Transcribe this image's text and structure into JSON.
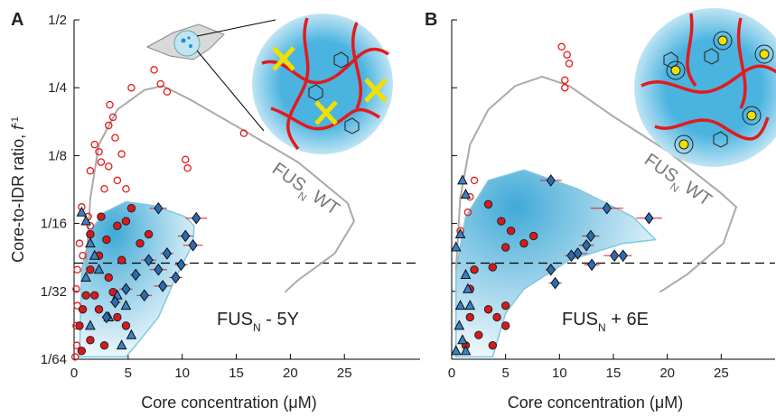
{
  "chart_data": [
    {
      "type": "scatter",
      "panel_label": "A",
      "yscale": "log2",
      "xlabel": "Core concentration (μM)",
      "ylabel": {
        "text": "Core-to-IDR ratio, ",
        "var": "f",
        "sup": "-1"
      },
      "xlim": [
        0,
        32
      ],
      "ylim": [
        0.015625,
        0.5
      ],
      "xticks": [
        0,
        5,
        10,
        15,
        20,
        25
      ],
      "yticks": [
        {
          "value": 0.5,
          "label": "1/2"
        },
        {
          "value": 0.25,
          "label": "1/4"
        },
        {
          "value": 0.125,
          "label": "1/8"
        },
        {
          "value": 0.0625,
          "label": "1/16"
        },
        {
          "value": 0.03125,
          "label": "1/32"
        },
        {
          "value": 0.015625,
          "label": "1/64"
        }
      ],
      "ytick_labels": true,
      "hline": 0.0417,
      "annotations": [
        {
          "text": "FUS",
          "sub": "N",
          "rest": " WT"
        },
        {
          "text": "FUS",
          "sub": "N",
          "rest": " - 5Y"
        }
      ],
      "series": [
        {
          "kind": "area",
          "color": "#7ec8e3",
          "x": [
            0.5,
            0.7,
            1.5,
            2.8,
            4.8,
            7.4,
            10.3,
            11.1,
            11.0,
            9.4,
            7.8,
            5.7,
            4.8
          ],
          "values": [
            0.016,
            0.039,
            0.058,
            0.07,
            0.078,
            0.075,
            0.067,
            0.061,
            0.051,
            0.036,
            0.024,
            0.018,
            0.016
          ]
        },
        {
          "kind": "line",
          "color": "#aaaaaa",
          "x": [
            1.1,
            1.5,
            2.3,
            4.0,
            6.5,
            8.2,
            10.7,
            14.9,
            20.7,
            25.3,
            25.9,
            24.1,
            20.7,
            19.5
          ],
          "values": [
            0.039,
            0.081,
            0.14,
            0.2,
            0.244,
            0.255,
            0.222,
            0.17,
            0.117,
            0.077,
            0.064,
            0.046,
            0.035,
            0.031
          ]
        },
        {
          "kind": "scatter",
          "marker": "open-circle",
          "color": "#e31a1c",
          "x": [
            7.4,
            8.0,
            8.6,
            5.3,
            3.3,
            3.6,
            3.2,
            3.8,
            1.9,
            2.3,
            2.5,
            1.5,
            3.2,
            4.0,
            10.3,
            10.5,
            15.7,
            0.7,
            1.3,
            1.5,
            0.5,
            0.3,
            0.2,
            0.3,
            0.2,
            0.25,
            0.1,
            0.8,
            4.4,
            4.8,
            2.8
          ],
          "values": [
            0.3,
            0.26,
            0.24,
            0.25,
            0.21,
            0.185,
            0.17,
            0.15,
            0.14,
            0.13,
            0.117,
            0.107,
            0.112,
            0.097,
            0.12,
            0.11,
            0.157,
            0.074,
            0.067,
            0.061,
            0.051,
            0.039,
            0.032,
            0.027,
            0.022,
            0.018,
            0.016,
            0.045,
            0.127,
            0.089,
            0.089
          ]
        },
        {
          "kind": "scatter",
          "marker": "circle",
          "color": "#d7191c",
          "x": [
            5.3,
            4.0,
            3.0,
            4.8,
            2.3,
            1.5,
            3.2,
            1.1,
            2.3,
            4.0,
            0.5,
            1.5,
            0.7,
            2.8,
            4.8,
            6.1,
            6.9,
            4.4,
            3.6,
            1.9,
            0.8,
            2.5,
            1.5
          ],
          "values": [
            0.073,
            0.061,
            0.053,
            0.064,
            0.045,
            0.039,
            0.036,
            0.03,
            0.026,
            0.024,
            0.022,
            0.019,
            0.017,
            0.018,
            0.022,
            0.051,
            0.056,
            0.043,
            0.031,
            0.03,
            0.026,
            0.067,
            0.056
          ]
        },
        {
          "kind": "scatter",
          "marker": "triangle",
          "color": "#3b82c4",
          "x": [
            0.7,
            1.1,
            1.5,
            1.9,
            2.3,
            4.0,
            4.4,
            5.3,
            1.1,
            1.5,
            3.2,
            4.8
          ],
          "values": [
            0.07,
            0.064,
            0.051,
            0.045,
            0.039,
            0.03,
            0.018,
            0.02,
            0.036,
            0.022,
            0.024,
            0.027
          ]
        },
        {
          "kind": "scatter",
          "marker": "diamond",
          "color": "#2b6cb0",
          "err_color": "#e31a1c",
          "x": [
            11.3,
            7.8,
            10.3,
            11.0,
            8.6,
            6.9,
            7.8,
            9.4,
            5.7,
            4.8,
            3.8,
            6.5,
            8.2,
            9.9,
            3.0
          ],
          "values": [
            0.066,
            0.073,
            0.055,
            0.05,
            0.046,
            0.043,
            0.039,
            0.036,
            0.037,
            0.032,
            0.028,
            0.03,
            0.033,
            0.041,
            0.024
          ],
          "xerr": [
            1.0,
            0.8,
            0.7,
            0.9,
            0.6,
            0.7,
            0.8,
            0.6,
            0.5,
            0.6,
            0.5,
            0.7,
            0.8,
            0.6,
            0.4
          ]
        }
      ]
    },
    {
      "type": "scatter",
      "panel_label": "B",
      "yscale": "log2",
      "xlabel": "Core concentration (μM)",
      "xlim": [
        0,
        30
      ],
      "ylim": [
        0.015625,
        0.5
      ],
      "xticks": [
        0,
        5,
        10,
        15,
        20,
        25
      ],
      "yticks": [
        0.5,
        0.25,
        0.125,
        0.0625,
        0.03125,
        0.015625
      ],
      "ytick_labels": false,
      "hline": 0.0417,
      "annotations": [
        {
          "text": "FUS",
          "sub": "N",
          "rest": " WT"
        },
        {
          "text": "FUS",
          "sub": "N",
          "rest": " + 6E"
        }
      ],
      "series": [
        {
          "kind": "area",
          "color": "#7ec8e3",
          "x": [
            0.4,
            0.4,
            1.3,
            3.4,
            6.7,
            11.7,
            16.8,
            18.9,
            15.9,
            10.9,
            6.7,
            5.0,
            3.8
          ],
          "values": [
            0.016,
            0.039,
            0.067,
            0.097,
            0.108,
            0.089,
            0.067,
            0.053,
            0.051,
            0.043,
            0.032,
            0.025,
            0.016
          ]
        },
        {
          "kind": "line",
          "color": "#aaaaaa",
          "x": [
            0.4,
            0.8,
            1.7,
            3.4,
            5.9,
            8.4,
            10.9,
            15.1,
            20.1,
            25.0,
            26.4,
            25.2,
            21.8,
            19.3
          ],
          "values": [
            0.039,
            0.081,
            0.14,
            0.2,
            0.255,
            0.28,
            0.255,
            0.185,
            0.13,
            0.085,
            0.074,
            0.051,
            0.037,
            0.031
          ]
        },
        {
          "kind": "scatter",
          "marker": "open-circle",
          "color": "#e31a1c",
          "x": [
            10.2,
            10.7,
            10.9,
            10.5,
            10.5,
            1.7,
            2.1,
            1.5,
            0.8
          ],
          "values": [
            0.38,
            0.35,
            0.32,
            0.27,
            0.25,
            0.082,
            0.097,
            0.07,
            0.058
          ]
        },
        {
          "kind": "scatter",
          "marker": "circle",
          "color": "#d7191c",
          "x": [
            3.4,
            4.6,
            5.5,
            6.7,
            7.6,
            5.0,
            3.8,
            2.1,
            1.7,
            3.4,
            4.2,
            5.0,
            1.7,
            2.5,
            3.8,
            5.0,
            1.3
          ],
          "values": [
            0.076,
            0.064,
            0.058,
            0.051,
            0.055,
            0.049,
            0.04,
            0.039,
            0.032,
            0.026,
            0.024,
            0.027,
            0.024,
            0.02,
            0.018,
            0.022,
            0.018
          ]
        },
        {
          "kind": "scatter",
          "marker": "triangle",
          "color": "#3b82c4",
          "x": [
            1.0,
            1.3,
            0.8,
            0.4,
            1.3,
            1.5,
            0.8,
            0.7,
            1.0,
            0.4,
            1.3,
            1.7
          ],
          "values": [
            0.097,
            0.084,
            0.056,
            0.049,
            0.037,
            0.032,
            0.027,
            0.022,
            0.019,
            0.017,
            0.017,
            0.027
          ]
        },
        {
          "kind": "scatter",
          "marker": "diamond",
          "color": "#2b6cb0",
          "err_color": "#e31a1c",
          "x": [
            9.2,
            14.4,
            18.3,
            12.9,
            12.5,
            11.7,
            11.1,
            15.1,
            15.9,
            13.0,
            9.6,
            9.2
          ],
          "values": [
            0.097,
            0.073,
            0.066,
            0.055,
            0.05,
            0.046,
            0.045,
            0.045,
            0.045,
            0.041,
            0.034,
            0.039
          ],
          "xerr": [
            1.0,
            1.5,
            1.2,
            0.8,
            0.7,
            0.9,
            0.6,
            1.0,
            0.8,
            0.7,
            0.6,
            0.5
          ]
        }
      ]
    }
  ]
}
